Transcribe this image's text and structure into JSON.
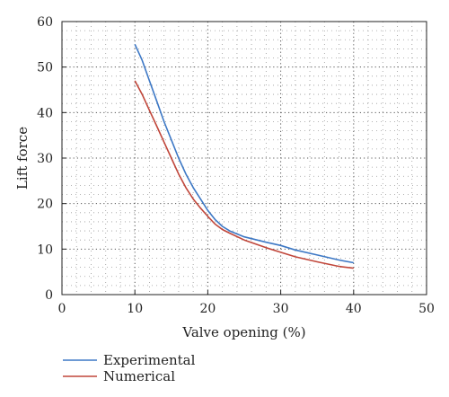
{
  "chart_data": {
    "type": "line",
    "title": "",
    "xlabel": "Valve opening (%)",
    "ylabel": "Lift force",
    "xlim": [
      0,
      50
    ],
    "ylim": [
      0,
      60
    ],
    "xticks": [
      "0",
      "10",
      "20",
      "30",
      "40",
      "50"
    ],
    "yticks": [
      "0",
      "10",
      "20",
      "30",
      "40",
      "50",
      "60"
    ],
    "grid": true,
    "legend_position": "bottom-left",
    "series": [
      {
        "name": "Experimental",
        "color": "#3d78c5",
        "x": [
          10,
          11,
          12,
          13,
          14,
          15,
          16,
          17,
          18,
          19,
          20,
          21,
          22,
          23,
          25,
          28,
          30,
          32,
          35,
          38,
          40
        ],
        "y": [
          55,
          51.5,
          47,
          42.5,
          38,
          34,
          30,
          26.5,
          23.5,
          21,
          18.5,
          16.5,
          15,
          14,
          12.7,
          11.5,
          10.8,
          9.8,
          8.7,
          7.6,
          7
        ]
      },
      {
        "name": "Numerical",
        "color": "#c0463a",
        "x": [
          10,
          11,
          12,
          13,
          14,
          15,
          16,
          17,
          18,
          19,
          20,
          21,
          22,
          23,
          25,
          28,
          30,
          32,
          35,
          38,
          40
        ],
        "y": [
          47,
          44,
          40.5,
          37,
          33.5,
          30,
          26.5,
          23.5,
          21,
          19,
          17.2,
          15.5,
          14.3,
          13.5,
          12,
          10.3,
          9.3,
          8.3,
          7.2,
          6.2,
          5.8
        ]
      }
    ]
  }
}
